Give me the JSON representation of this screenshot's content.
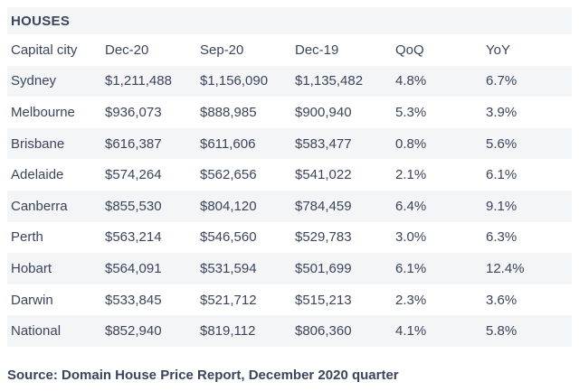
{
  "chart_data": {
    "type": "table",
    "title": "HOUSES",
    "columns": [
      "Capital city",
      "Dec-20",
      "Sep-20",
      "Dec-19",
      "QoQ",
      "YoY"
    ],
    "rows": [
      [
        "Sydney",
        "$1,211,488",
        "$1,156,090",
        "$1,135,482",
        "4.8%",
        "6.7%"
      ],
      [
        "Melbourne",
        "$936,073",
        "$888,985",
        "$900,940",
        "5.3%",
        "3.9%"
      ],
      [
        "Brisbane",
        "$616,387",
        "$611,606",
        "$583,477",
        "0.8%",
        "5.6%"
      ],
      [
        "Adelaide",
        "$574,264",
        "$562,656",
        "$541,022",
        "2.1%",
        "6.1%"
      ],
      [
        "Canberra",
        "$855,530",
        "$804,120",
        "$784,459",
        "6.4%",
        "9.1%"
      ],
      [
        "Perth",
        "$563,214",
        "$546,560",
        "$529,783",
        "3.0%",
        "6.3%"
      ],
      [
        "Hobart",
        "$564,091",
        "$531,594",
        "$501,699",
        "6.1%",
        "12.4%"
      ],
      [
        "Darwin",
        "$533,845",
        "$521,712",
        "$515,213",
        "2.3%",
        "3.6%"
      ],
      [
        "National",
        "$852,940",
        "$819,112",
        "$806,360",
        "4.1%",
        "5.8%"
      ]
    ],
    "source": "Source: Domain House Price Report, December 2020 quarter",
    "layout": {
      "striped_rows": "title, Sydney, Brisbane, Canberra, Hobart, National",
      "alignment": "left"
    }
  },
  "colors": {
    "text": "#3a455c",
    "stripe": "#f4f5f7",
    "background": "#ffffff"
  }
}
